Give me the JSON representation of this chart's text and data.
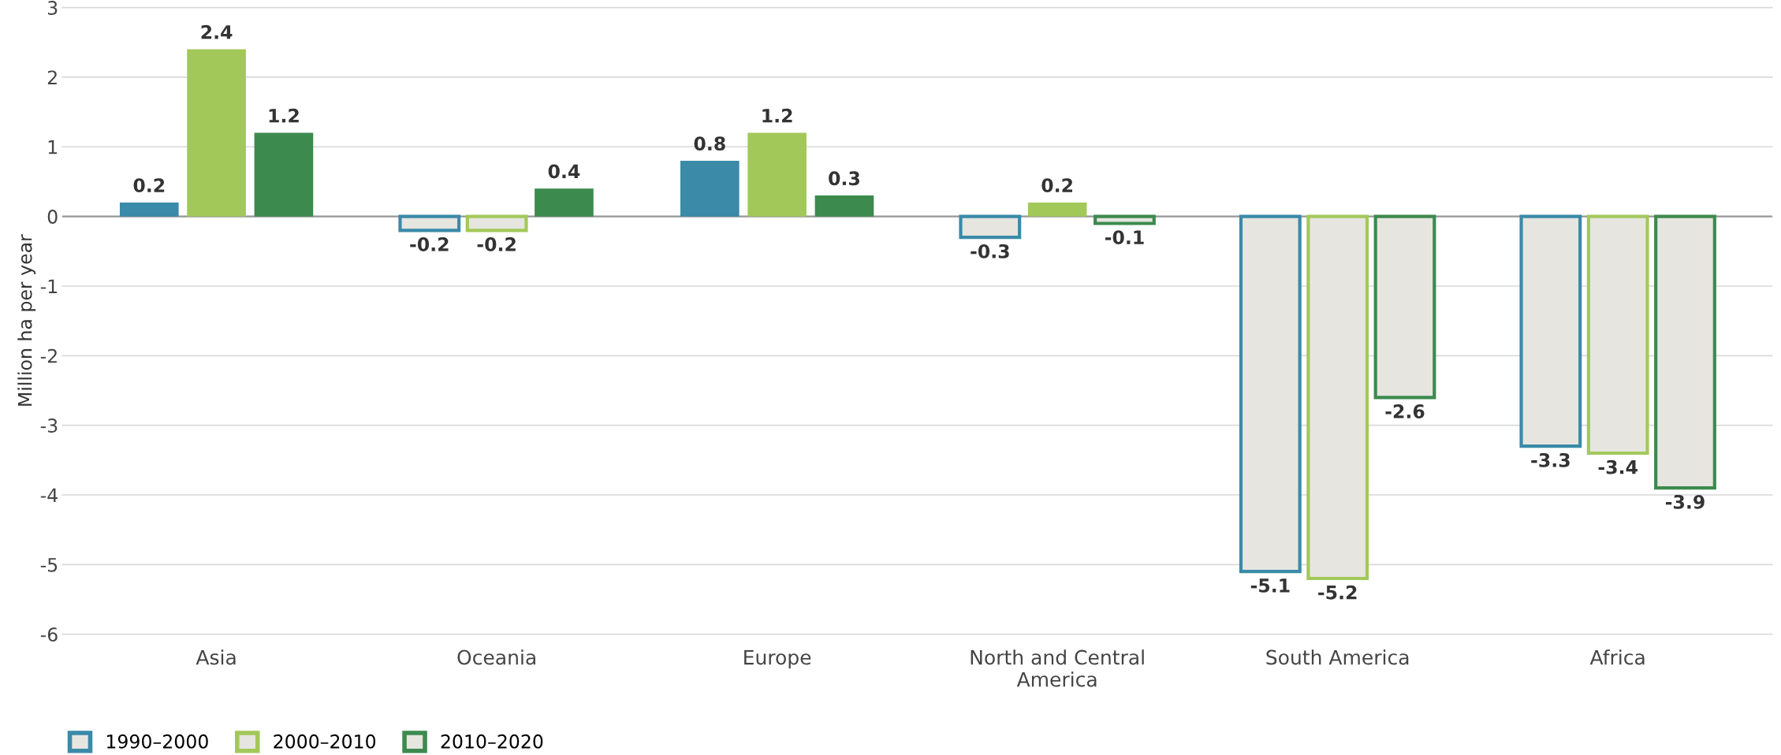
{
  "chart_data": {
    "type": "bar",
    "ylabel": "Million ha per year",
    "categories": [
      "Asia",
      "Oceania",
      "Europe",
      "North and Central America",
      "South America",
      "Africa"
    ],
    "series": [
      {
        "name": "1990–2000",
        "color": "#3a8aa8",
        "values": [
          0.2,
          -0.2,
          0.8,
          -0.3,
          -5.1,
          -3.3
        ]
      },
      {
        "name": "2000–2010",
        "color": "#a3c85a",
        "values": [
          2.4,
          -0.2,
          1.2,
          0.2,
          -5.2,
          -3.4
        ]
      },
      {
        "name": "2010–2020",
        "color": "#3d8a4e",
        "values": [
          1.2,
          0.4,
          0.3,
          -0.1,
          -2.6,
          -3.9
        ]
      }
    ],
    "ylim": [
      -6,
      3
    ],
    "yticks": [
      -6,
      -5,
      -4,
      -3,
      -2,
      -1,
      0,
      1,
      2,
      3
    ],
    "grid": "y",
    "legend": "bottom left",
    "data_labels": true
  }
}
